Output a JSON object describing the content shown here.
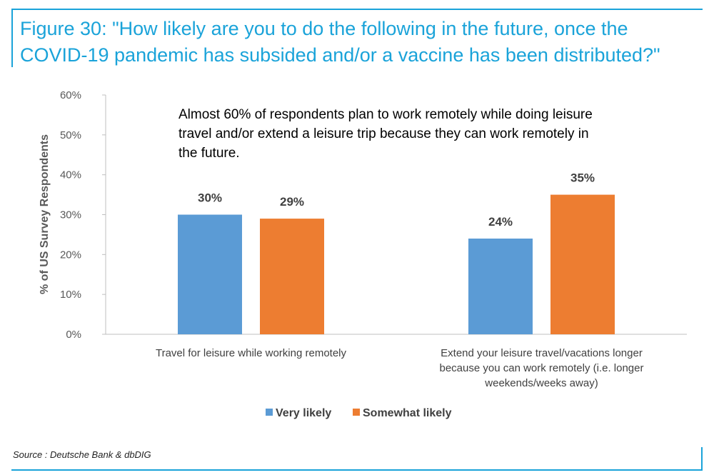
{
  "figure": {
    "title": "Figure 30: \"How likely are you to do the following in the future, once the COVID-19 pandemic has subsided and/or a vaccine has been distributed?\"",
    "source": "Source : Deutsche Bank & dbDIG"
  },
  "chart_data": {
    "type": "bar",
    "title": "",
    "xlabel": "",
    "ylabel": "% of US Survey Respondents",
    "ylim": [
      0,
      60
    ],
    "yticks": [
      0,
      10,
      20,
      30,
      40,
      50,
      60
    ],
    "ytick_labels": [
      "0%",
      "10%",
      "20%",
      "30%",
      "40%",
      "50%",
      "60%"
    ],
    "categories": [
      "Travel for leisure while working remotely",
      "Extend your leisure travel/vacations longer because you can work remotely (i.e. longer weekends/weeks away)"
    ],
    "category_label_lines": [
      [
        "Travel for leisure while working remotely"
      ],
      [
        "Extend your leisure travel/vacations longer",
        "because you can work remotely (i.e. longer",
        "weekends/weeks away)"
      ]
    ],
    "series": [
      {
        "name": "Very likely",
        "values": [
          30,
          24
        ],
        "labels": [
          "30%",
          "24%"
        ],
        "color": "#5b9bd5"
      },
      {
        "name": "Somewhat likely",
        "values": [
          29,
          35
        ],
        "labels": [
          "29%",
          "35%"
        ],
        "color": "#ed7d31"
      }
    ],
    "annotation": {
      "lines": [
        "Almost 60% of respondents plan to work remotely while doing leisure",
        "travel and/or extend a leisure trip because they can work remotely in",
        "the future."
      ]
    },
    "legend": "bottom-center",
    "grid": false
  }
}
